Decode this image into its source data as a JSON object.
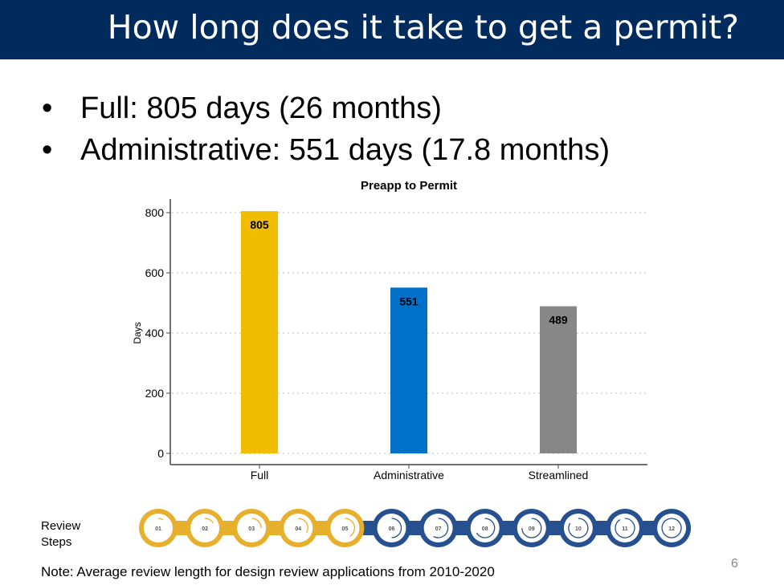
{
  "header": {
    "title": "How long does it take to get a permit?",
    "bg": "#002b5c"
  },
  "bullets": [
    {
      "marker": "•",
      "text": "Full: 805 days (26 months)"
    },
    {
      "marker": "•",
      "text": "Administrative: 551 days (17.8 months)"
    }
  ],
  "chart_data": {
    "type": "bar",
    "title": "Preapp to Permit",
    "xlabel": "",
    "ylabel": "Days",
    "categories": [
      "Full",
      "Administrative",
      "Streamlined"
    ],
    "values": [
      805,
      551,
      489
    ],
    "data_labels": [
      "805",
      "551",
      "489"
    ],
    "colors": [
      "#f0bd00",
      "#0070c8",
      "#878787"
    ],
    "ylim": [
      0,
      840
    ],
    "yticks": [
      0,
      200,
      400,
      600,
      800
    ],
    "grid": "horizontal dotted"
  },
  "review_steps": {
    "label_line1": "Review",
    "label_line2": "Steps",
    "steps": [
      "01",
      "02",
      "03",
      "04",
      "05",
      "06",
      "07",
      "08",
      "09",
      "10",
      "11",
      "12"
    ],
    "completed": 5,
    "colors": {
      "done": "#e7b02c",
      "todo": "#26508f"
    }
  },
  "note": "Note:  Average review length for design review applications from 2010-2020",
  "page_number": "6"
}
